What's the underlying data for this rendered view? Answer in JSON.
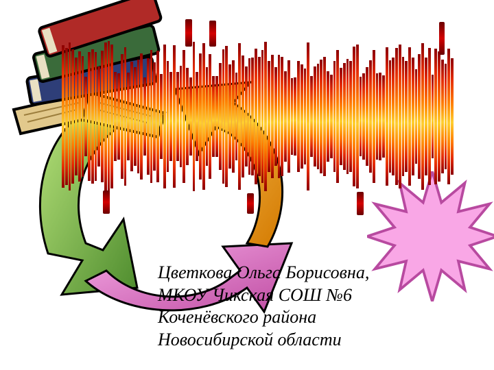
{
  "author": {
    "line1": "Цветкова Ольга Борисовна,",
    "line2": "МКОУ Чикская СОШ №6",
    "line3": "Коченёвского района",
    "line4": "Новосибирской области"
  },
  "colors": {
    "book_red": "#b02a27",
    "book_green": "#3a6b3a",
    "book_blue": "#2e3e78",
    "book_cream": "#e2c98c",
    "book_shadow": "#000000",
    "arrow_green_light": "#b7e27a",
    "arrow_green_dark": "#4e8c2e",
    "arrow_pink_light": "#f3a7e3",
    "arrow_pink_dark": "#c04da3",
    "arrow_orange_light": "#ffcf6a",
    "arrow_orange_dark": "#d47a00",
    "arrow_stroke": "#000000",
    "star_fill": "#f9a7e6",
    "star_stroke": "#b84aa0",
    "fire_top": "#8c0000",
    "fire_mid": "#ffcf30",
    "background": "#ffffff",
    "text": "#000000"
  },
  "fire_band": {
    "bars": 120,
    "base_height_pct": 72,
    "jitter_pct": 48,
    "gradient": [
      "#8c0000",
      "#e42a00",
      "#ff7a00",
      "#ffcf30",
      "#ff7a00",
      "#e42a00",
      "#8c0000"
    ]
  }
}
